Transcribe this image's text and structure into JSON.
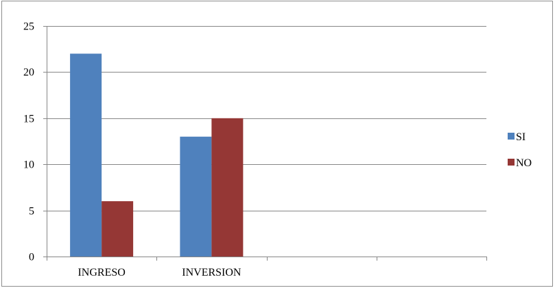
{
  "chart_data": {
    "type": "bar",
    "categories": [
      "INGRESO",
      "INVERSION",
      "",
      ""
    ],
    "series": [
      {
        "name": "SI",
        "values": [
          22,
          13,
          null,
          null
        ],
        "color": "#4f81bd"
      },
      {
        "name": "NO",
        "values": [
          6,
          15,
          null,
          null
        ],
        "color": "#953735"
      }
    ],
    "ylim": [
      0,
      25
    ],
    "yticks": [
      0,
      5,
      10,
      15,
      20,
      25
    ],
    "grid": true,
    "legend": "right",
    "title": "",
    "xlabel": "",
    "ylabel": ""
  }
}
